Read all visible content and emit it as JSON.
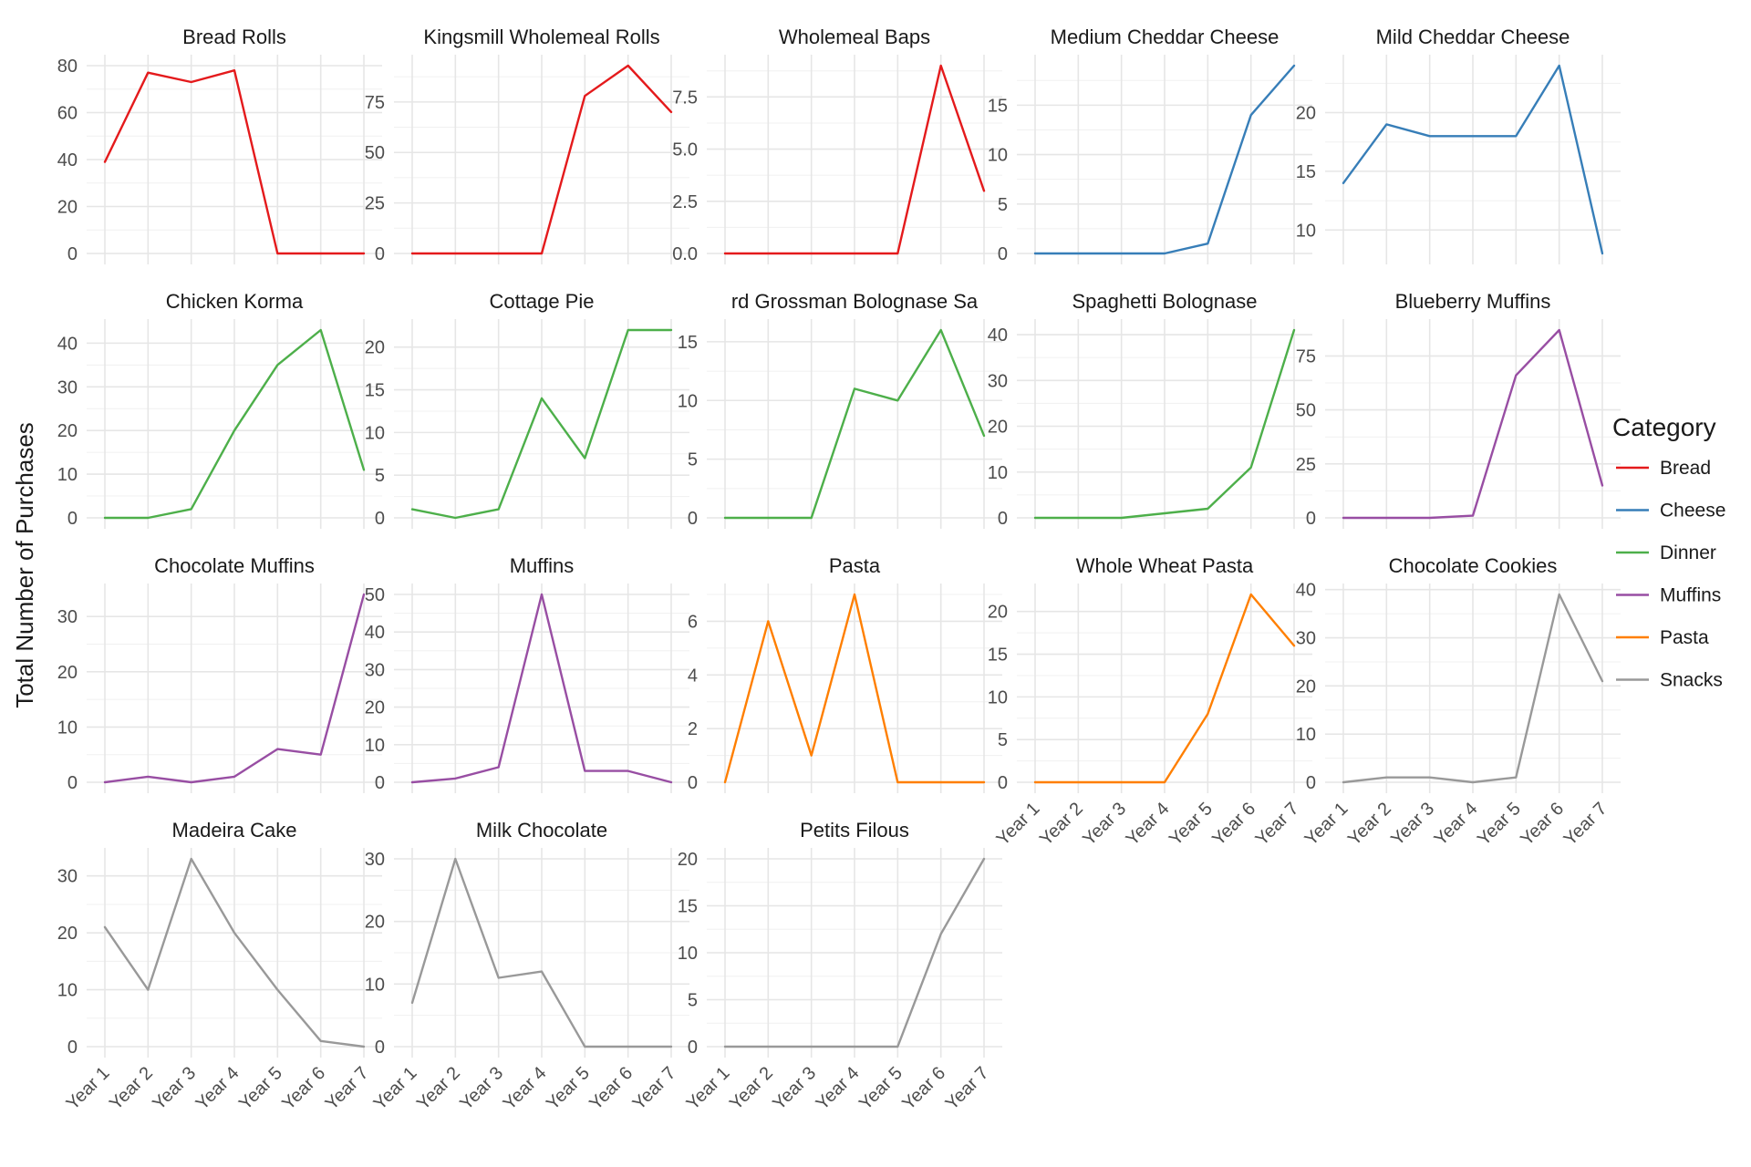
{
  "chart_data": {
    "type": "line",
    "layout": "facet-grid",
    "ylabel": "Total Number of Purchases",
    "xlabel": "",
    "categories": [
      "Year 1",
      "Year 2",
      "Year 3",
      "Year 4",
      "Year 5",
      "Year 6",
      "Year 7"
    ],
    "grid": true,
    "legend": {
      "title": "Category",
      "placement": "right",
      "items": [
        {
          "label": "Bread",
          "color": "#e41a1c"
        },
        {
          "label": "Cheese",
          "color": "#377eb8"
        },
        {
          "label": "Dinner",
          "color": "#4daf4a"
        },
        {
          "label": "Muffins",
          "color": "#984ea3"
        },
        {
          "label": "Pasta",
          "color": "#ff7f00"
        },
        {
          "label": "Snacks",
          "color": "#999999"
        }
      ]
    },
    "panels": [
      {
        "title": "Bread Rolls",
        "category": "Bread",
        "values": [
          39,
          77,
          73,
          78,
          0,
          0,
          0
        ],
        "ylim": [
          0,
          80
        ],
        "yticks": [
          0,
          20,
          40,
          60,
          80
        ]
      },
      {
        "title": "Kingsmill Wholemeal Rolls",
        "category": "Bread",
        "values": [
          0,
          0,
          0,
          0,
          78,
          93,
          70
        ],
        "ylim": [
          0,
          93
        ],
        "yticks": [
          0,
          25,
          50,
          75
        ]
      },
      {
        "title": "Wholemeal Baps",
        "category": "Bread",
        "values": [
          0,
          0,
          0,
          0,
          0,
          9,
          3
        ],
        "ylim": [
          0,
          9
        ],
        "yticks": [
          0,
          2.5,
          5,
          7.5
        ],
        "ytick_labels": [
          "0.0",
          "2.5",
          "5.0",
          "7.5"
        ]
      },
      {
        "title": "Medium Cheddar Cheese",
        "category": "Cheese",
        "values": [
          0,
          0,
          0,
          0,
          1,
          14,
          19
        ],
        "ylim": [
          0,
          19
        ],
        "yticks": [
          0,
          5,
          10,
          15
        ]
      },
      {
        "title": "Mild Cheddar Cheese",
        "category": "Cheese",
        "values": [
          14,
          19,
          18,
          18,
          18,
          24,
          8
        ],
        "ylim": [
          8,
          24
        ],
        "yticks": [
          10,
          15,
          20
        ]
      },
      {
        "title": "Chicken Korma",
        "category": "Dinner",
        "values": [
          0,
          0,
          2,
          20,
          35,
          43,
          11
        ],
        "ylim": [
          0,
          43
        ],
        "yticks": [
          0,
          10,
          20,
          30,
          40
        ]
      },
      {
        "title": "Cottage Pie",
        "category": "Dinner",
        "values": [
          1,
          0,
          1,
          14,
          7,
          22,
          22
        ],
        "ylim": [
          0,
          22
        ],
        "yticks": [
          0,
          5,
          10,
          15,
          20
        ]
      },
      {
        "title": "rd Grossman Bolognase Sa",
        "category": "Dinner",
        "values": [
          0,
          0,
          0,
          11,
          10,
          16,
          7
        ],
        "ylim": [
          0,
          16
        ],
        "yticks": [
          0,
          5,
          10,
          15
        ]
      },
      {
        "title": "Spaghetti Bolognase",
        "category": "Dinner",
        "values": [
          0,
          0,
          0,
          1,
          2,
          11,
          41
        ],
        "ylim": [
          0,
          41
        ],
        "yticks": [
          0,
          10,
          20,
          30,
          40
        ]
      },
      {
        "title": "Blueberry Muffins",
        "category": "Muffins",
        "values": [
          0,
          0,
          0,
          1,
          66,
          87,
          15
        ],
        "ylim": [
          0,
          87
        ],
        "yticks": [
          0,
          25,
          50,
          75
        ]
      },
      {
        "title": "Chocolate Muffins",
        "category": "Muffins",
        "values": [
          0,
          1,
          0,
          1,
          6,
          5,
          34
        ],
        "ylim": [
          0,
          34
        ],
        "yticks": [
          0,
          10,
          20,
          30
        ]
      },
      {
        "title": "Muffins",
        "category": "Muffins",
        "values": [
          0,
          1,
          4,
          50,
          3,
          3,
          0
        ],
        "ylim": [
          0,
          50
        ],
        "yticks": [
          0,
          10,
          20,
          30,
          40,
          50
        ]
      },
      {
        "title": "Pasta",
        "category": "Pasta",
        "values": [
          0,
          6,
          1,
          7,
          0,
          0,
          0
        ],
        "ylim": [
          0,
          7
        ],
        "yticks": [
          0,
          2,
          4,
          6
        ]
      },
      {
        "title": "Whole Wheat Pasta",
        "category": "Pasta",
        "values": [
          0,
          0,
          0,
          0,
          8,
          22,
          16
        ],
        "ylim": [
          0,
          22
        ],
        "yticks": [
          0,
          5,
          10,
          15,
          20
        ]
      },
      {
        "title": "Chocolate Cookies",
        "category": "Snacks",
        "values": [
          0,
          1,
          1,
          0,
          1,
          39,
          21
        ],
        "ylim": [
          0,
          39
        ],
        "yticks": [
          0,
          10,
          20,
          30,
          40
        ]
      },
      {
        "title": "Madeira Cake",
        "category": "Snacks",
        "values": [
          21,
          10,
          33,
          20,
          10,
          1,
          0
        ],
        "ylim": [
          0,
          33
        ],
        "yticks": [
          0,
          10,
          20,
          30
        ]
      },
      {
        "title": "Milk Chocolate",
        "category": "Snacks",
        "values": [
          7,
          30,
          11,
          12,
          0,
          0,
          0
        ],
        "ylim": [
          0,
          30
        ],
        "yticks": [
          0,
          10,
          20,
          30
        ]
      },
      {
        "title": "Petits Filous",
        "category": "Snacks",
        "values": [
          0,
          0,
          0,
          0,
          0,
          12,
          20
        ],
        "ylim": [
          0,
          20
        ],
        "yticks": [
          0,
          5,
          10,
          15,
          20
        ]
      }
    ]
  }
}
